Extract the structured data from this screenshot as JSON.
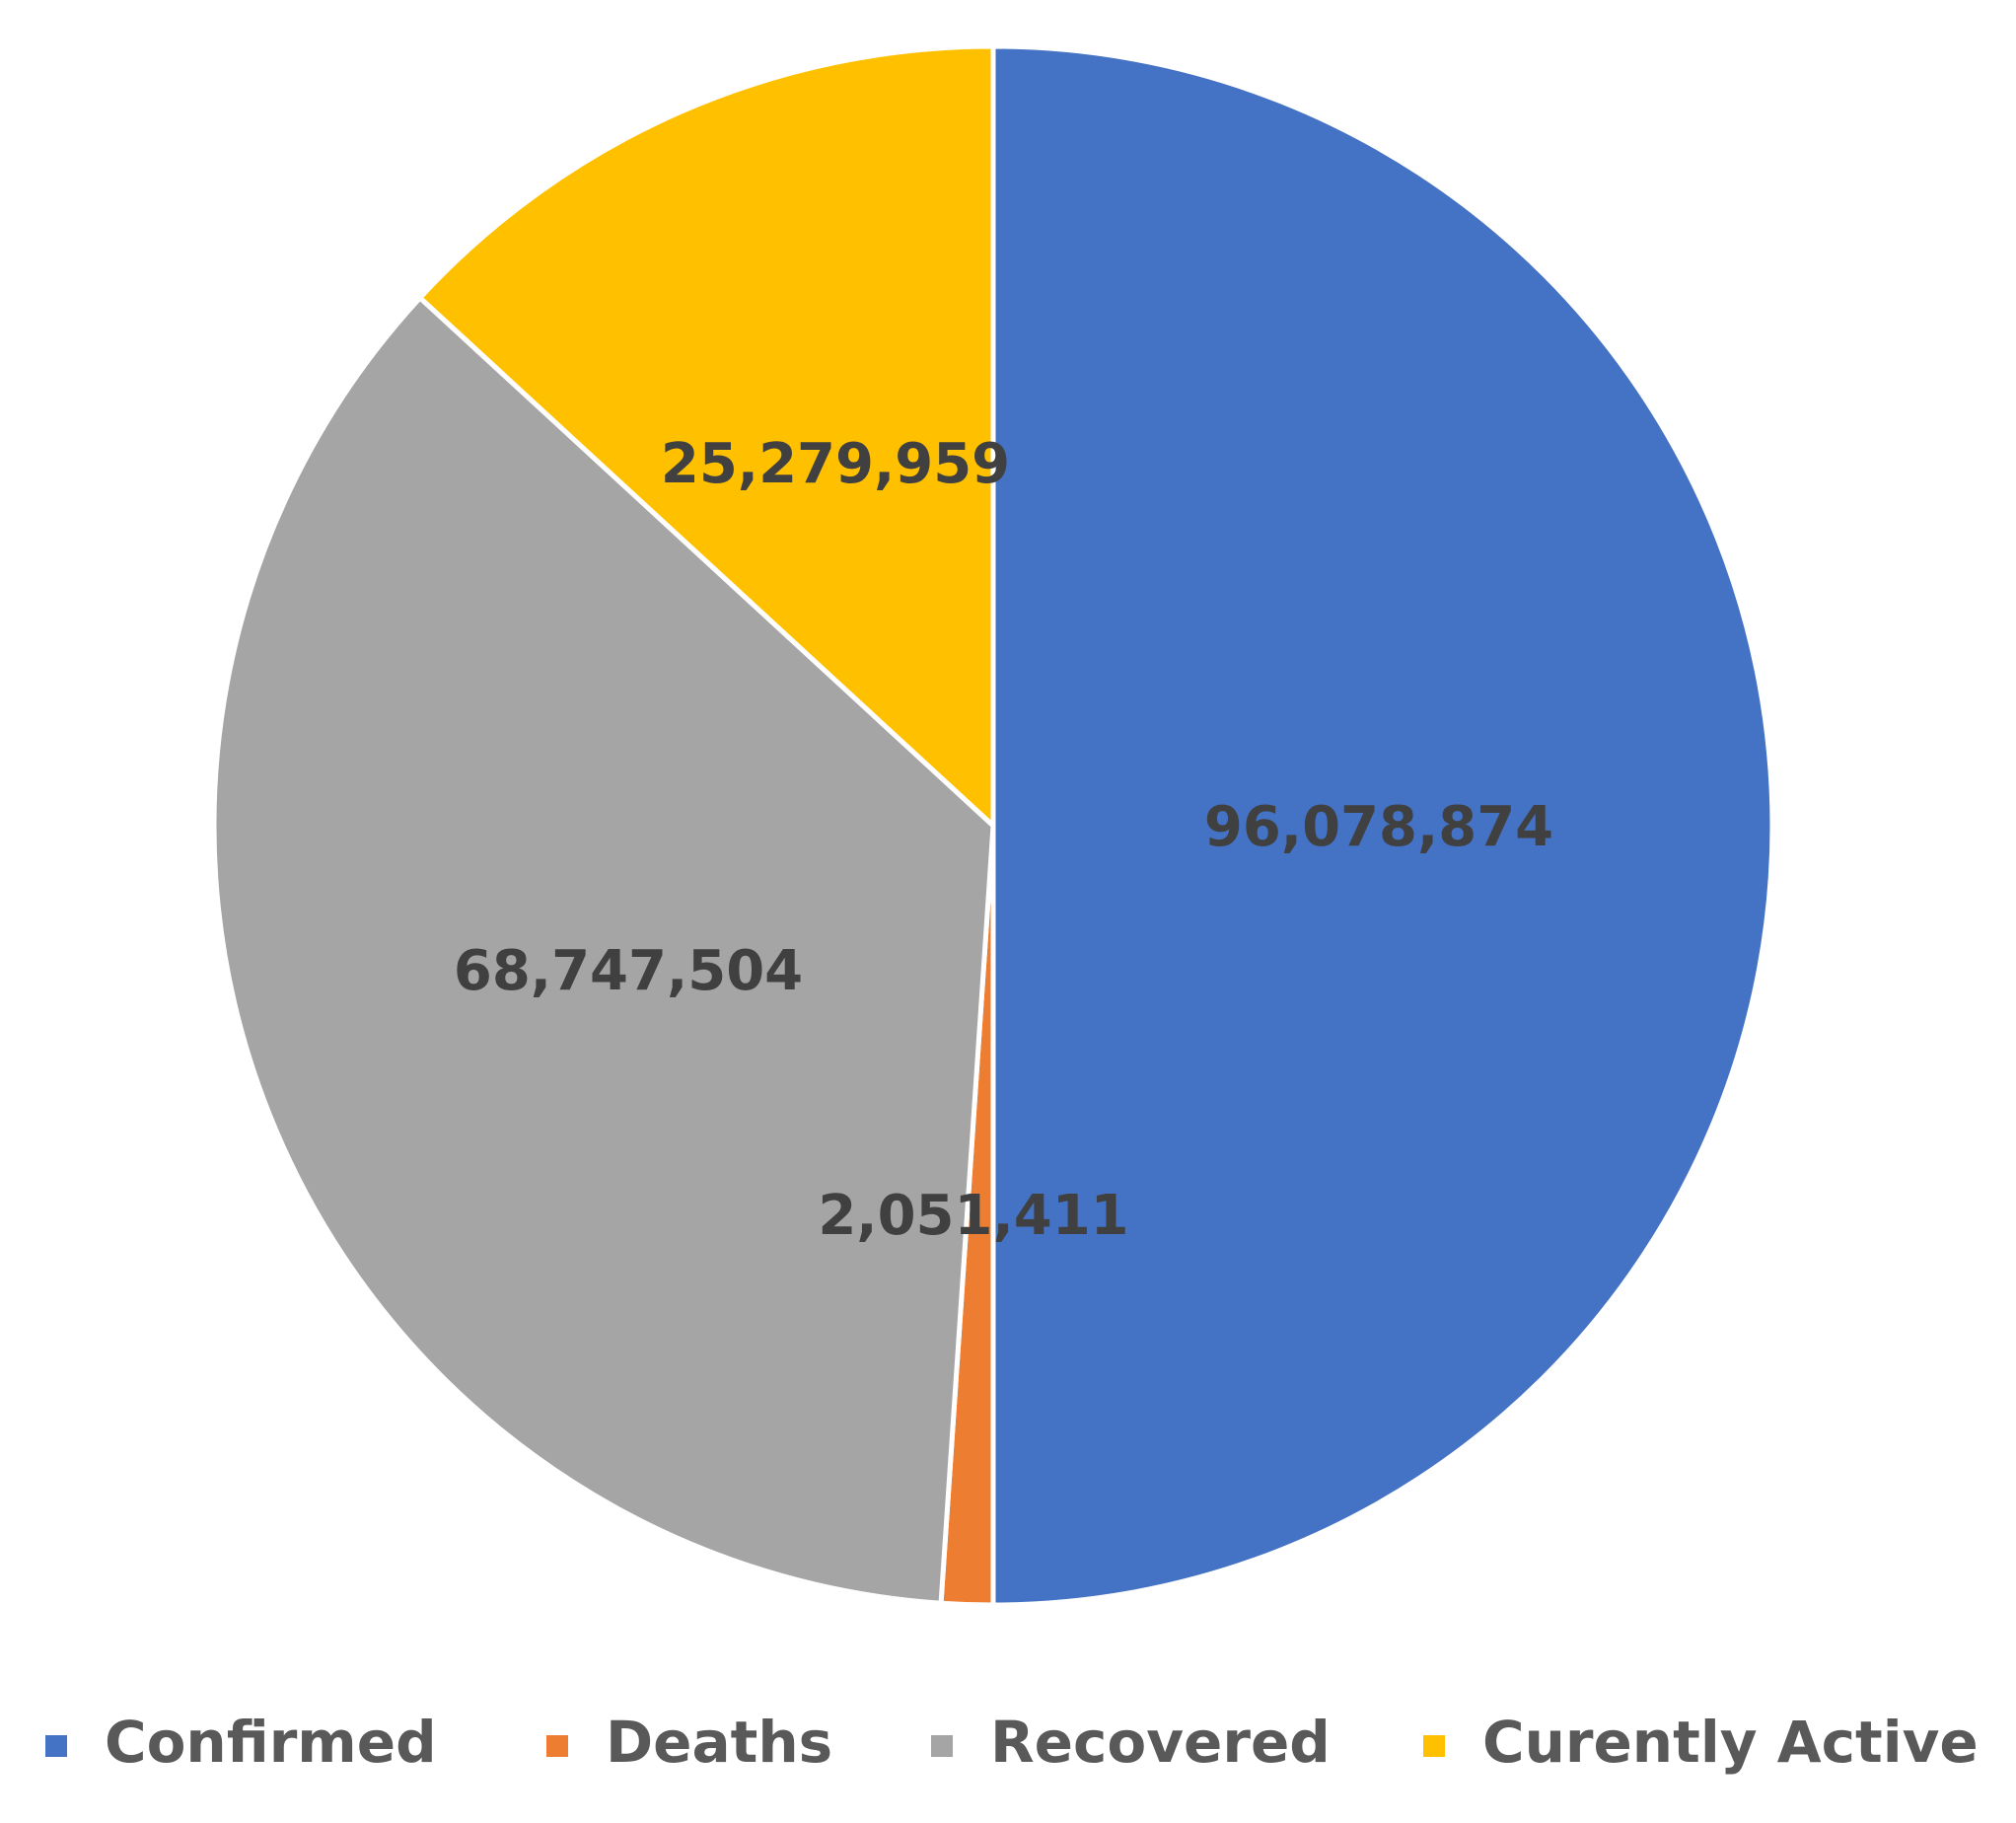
{
  "chart_data": {
    "type": "pie",
    "title": "",
    "slices": [
      {
        "label": "Confirmed",
        "value": 96078874,
        "display": "96,078,874",
        "color": "#4472C4"
      },
      {
        "label": "Deaths",
        "value": 2051411,
        "display": "2,051,411",
        "color": "#ED7D31"
      },
      {
        "label": "Recovered",
        "value": 68747504,
        "display": "68,747,504",
        "color": "#A5A5A5"
      },
      {
        "label": "Curently Active",
        "value": 25279959,
        "display": "25,279,959",
        "color": "#FFC000"
      }
    ],
    "start_angle_deg": 0,
    "direction": "clockwise",
    "legend_position": "bottom",
    "label_color": "#404040"
  }
}
